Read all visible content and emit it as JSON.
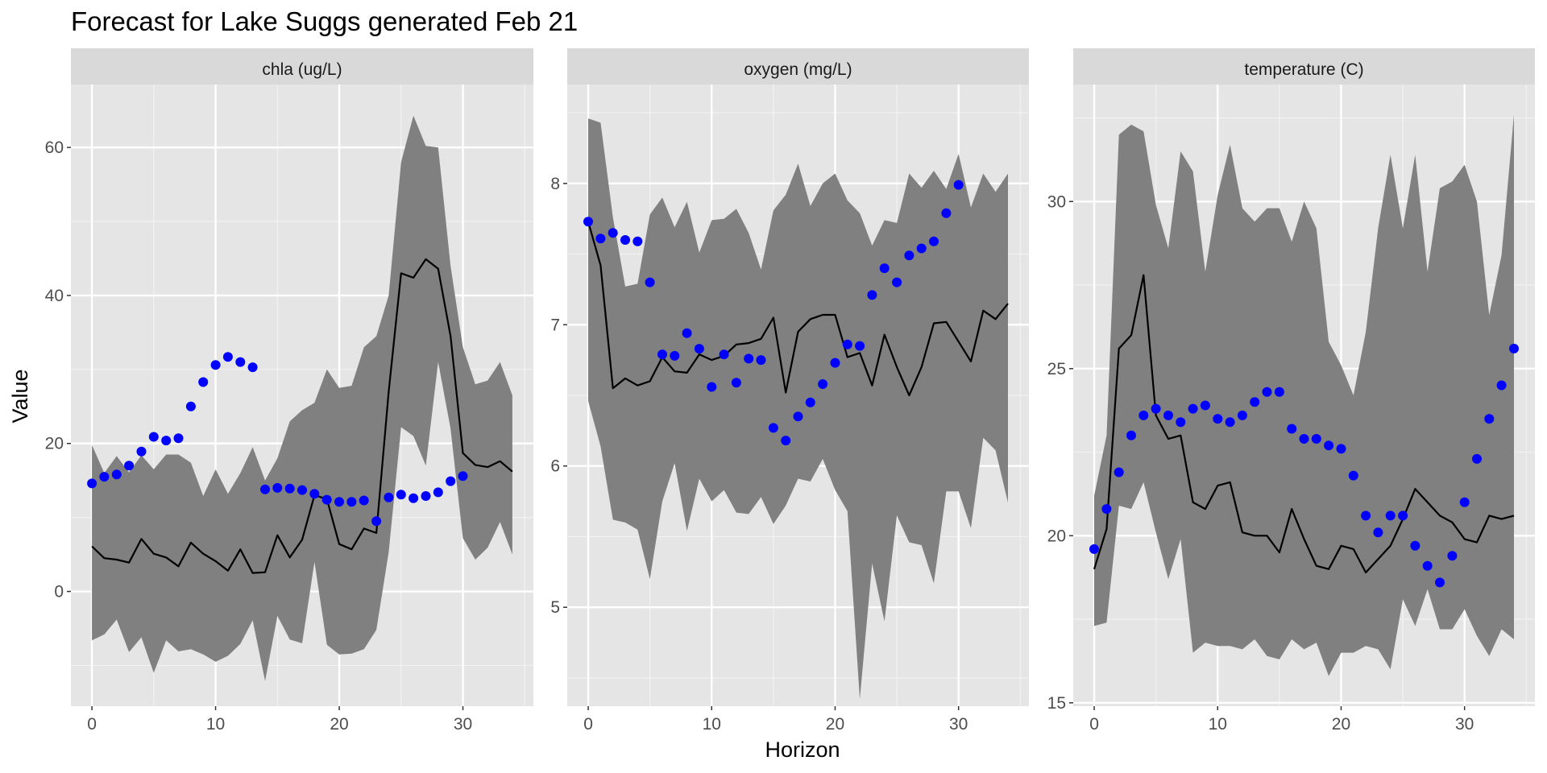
{
  "chart_data": {
    "type": "line",
    "title": "Forecast for Lake Suggs generated Feb 21",
    "xlabel": "Horizon",
    "ylabel": "Value",
    "colors": {
      "observed": "#0000ff",
      "mean": "#000000",
      "band": "#808080",
      "panel_bg": "#e5e5e5",
      "strip_bg": "#d9d9d9"
    },
    "grid": true,
    "facets": [
      {
        "label": "chla (ug/L)",
        "xlim": [
          -1.7,
          35.7
        ],
        "ylim": [
          -15.5,
          68.5
        ],
        "xticks": [
          0,
          10,
          20,
          30
        ],
        "yticks": [
          0,
          20,
          40,
          60
        ],
        "x": [
          0,
          1,
          2,
          3,
          4,
          5,
          6,
          7,
          8,
          9,
          10,
          11,
          12,
          13,
          14,
          15,
          16,
          17,
          18,
          19,
          20,
          21,
          22,
          23,
          24,
          25,
          26,
          27,
          28,
          29,
          30,
          31,
          32,
          33,
          34
        ],
        "mean": [
          6.1,
          4.5,
          4.3,
          3.9,
          7.1,
          5.1,
          4.6,
          3.4,
          6.6,
          5.1,
          4.1,
          2.8,
          5.7,
          2.5,
          2.6,
          7.6,
          4.6,
          7.0,
          13.0,
          12.5,
          6.4,
          5.7,
          8.5,
          7.9,
          27.0,
          43.0,
          42.4,
          44.9,
          43.6,
          34.5,
          18.7,
          17.1,
          16.8,
          17.6,
          16.2
        ],
        "upper": [
          19.8,
          16.0,
          18.3,
          16.1,
          18.4,
          16.5,
          18.5,
          18.5,
          17.4,
          12.9,
          16.5,
          13.2,
          16.0,
          19.5,
          15.0,
          18.0,
          23.0,
          24.5,
          25.5,
          30.0,
          27.5,
          27.8,
          33.0,
          34.5,
          40.0,
          58.0,
          64.3,
          60.2,
          60.0,
          44.0,
          33.0,
          28.0,
          28.5,
          31.0,
          26.5
        ],
        "lower": [
          -6.6,
          -5.8,
          -3.8,
          -8.2,
          -6.2,
          -11.0,
          -6.6,
          -8.1,
          -7.8,
          -8.5,
          -9.5,
          -8.7,
          -7.1,
          -3.9,
          -12.1,
          -3.3,
          -6.5,
          -7.0,
          4.0,
          -7.2,
          -8.5,
          -8.4,
          -7.8,
          -5.2,
          5.3,
          22.2,
          21.0,
          17.0,
          31.0,
          22.0,
          7.2,
          4.3,
          5.9,
          9.4,
          5.0
        ],
        "observed_x": [
          0,
          1,
          2,
          3,
          4,
          5,
          6,
          7,
          8,
          9,
          10,
          11,
          12,
          13,
          14,
          15,
          16,
          17,
          18,
          19,
          20,
          21,
          22,
          23,
          24,
          25,
          26,
          27,
          28,
          29,
          30
        ],
        "observed": [
          14.6,
          15.5,
          15.8,
          17.0,
          18.9,
          20.9,
          20.4,
          20.7,
          25.0,
          28.3,
          30.6,
          31.7,
          31.0,
          30.3,
          13.8,
          14.0,
          13.9,
          13.7,
          13.2,
          12.4,
          12.1,
          12.1,
          12.3,
          9.5,
          12.7,
          13.1,
          12.6,
          12.9,
          13.4,
          14.9,
          15.6
        ]
      },
      {
        "label": "oxygen (mg/L)",
        "xlim": [
          -1.7,
          35.7
        ],
        "ylim": [
          4.3,
          8.7
        ],
        "xticks": [
          0,
          10,
          20,
          30
        ],
        "yticks": [
          5,
          6,
          7,
          8
        ],
        "x": [
          0,
          1,
          2,
          3,
          4,
          5,
          6,
          7,
          8,
          9,
          10,
          11,
          12,
          13,
          14,
          15,
          16,
          17,
          18,
          19,
          20,
          21,
          22,
          23,
          24,
          25,
          26,
          27,
          28,
          29,
          30,
          31,
          32,
          33,
          34
        ],
        "mean": [
          7.73,
          7.42,
          6.55,
          6.62,
          6.57,
          6.6,
          6.77,
          6.67,
          6.66,
          6.79,
          6.75,
          6.78,
          6.86,
          6.87,
          6.9,
          7.05,
          6.52,
          6.95,
          7.04,
          7.07,
          7.07,
          6.77,
          6.8,
          6.57,
          6.93,
          6.7,
          6.5,
          6.7,
          7.01,
          7.02,
          6.88,
          6.74,
          7.1,
          7.04,
          7.15
        ],
        "upper": [
          8.46,
          8.43,
          7.76,
          7.27,
          7.29,
          7.78,
          7.9,
          7.69,
          7.87,
          7.51,
          7.74,
          7.75,
          7.82,
          7.65,
          7.39,
          7.81,
          7.92,
          8.14,
          7.84,
          8.0,
          8.07,
          7.88,
          7.79,
          7.56,
          7.74,
          7.72,
          8.07,
          7.97,
          8.09,
          7.96,
          8.21,
          7.83,
          8.07,
          7.94,
          8.07
        ],
        "lower": [
          6.46,
          6.14,
          5.62,
          5.6,
          5.55,
          5.2,
          5.75,
          6.02,
          5.54,
          5.91,
          5.75,
          5.83,
          5.67,
          5.66,
          5.78,
          5.59,
          5.72,
          5.91,
          5.89,
          6.05,
          5.83,
          5.68,
          4.35,
          5.31,
          4.9,
          5.65,
          5.46,
          5.44,
          5.17,
          5.82,
          5.82,
          5.56,
          6.2,
          6.11,
          5.74
        ],
        "observed_x": [
          0,
          1,
          2,
          3,
          4,
          5,
          6,
          7,
          8,
          9,
          10,
          11,
          12,
          13,
          14,
          15,
          16,
          17,
          18,
          19,
          20,
          21,
          22,
          23,
          24,
          25,
          26,
          27,
          28,
          29,
          30
        ],
        "observed": [
          7.73,
          7.61,
          7.65,
          7.6,
          7.59,
          7.3,
          6.79,
          6.78,
          6.94,
          6.83,
          6.56,
          6.79,
          6.59,
          6.76,
          6.75,
          6.27,
          6.18,
          6.35,
          6.45,
          6.58,
          6.73,
          6.86,
          6.85,
          7.21,
          7.4,
          7.3,
          7.49,
          7.54,
          7.59,
          7.79,
          7.99
        ]
      },
      {
        "label": "temperature (C)",
        "xlim": [
          -1.7,
          35.7
        ],
        "ylim": [
          14.9,
          33.5
        ],
        "xticks": [
          0,
          10,
          20,
          30
        ],
        "yticks": [
          15,
          20,
          25,
          30
        ],
        "x": [
          0,
          1,
          2,
          3,
          4,
          5,
          6,
          7,
          8,
          9,
          10,
          11,
          12,
          13,
          14,
          15,
          16,
          17,
          18,
          19,
          20,
          21,
          22,
          23,
          24,
          25,
          26,
          27,
          28,
          29,
          30,
          31,
          32,
          33,
          34
        ],
        "mean": [
          19.0,
          20.2,
          25.6,
          26.0,
          27.8,
          23.6,
          22.9,
          23.0,
          21.0,
          20.8,
          21.5,
          21.6,
          20.1,
          20.0,
          20.0,
          19.5,
          20.8,
          19.9,
          19.1,
          19.0,
          19.7,
          19.6,
          18.9,
          19.3,
          19.7,
          20.5,
          21.4,
          21.0,
          20.6,
          20.4,
          19.9,
          19.8,
          20.6,
          20.5,
          20.6
        ],
        "upper": [
          21.2,
          23.0,
          32.0,
          32.3,
          32.1,
          29.9,
          28.6,
          31.5,
          30.9,
          27.9,
          30.2,
          31.7,
          29.8,
          29.4,
          29.8,
          29.8,
          28.8,
          30.0,
          29.2,
          25.8,
          25.1,
          24.2,
          26.1,
          29.2,
          31.4,
          29.2,
          31.4,
          27.9,
          30.4,
          30.6,
          31.1,
          30.0,
          26.6,
          28.4,
          32.6
        ],
        "lower": [
          17.3,
          17.4,
          20.9,
          20.8,
          21.6,
          20.1,
          18.7,
          19.9,
          16.5,
          16.8,
          16.7,
          16.7,
          16.6,
          16.9,
          16.4,
          16.3,
          16.9,
          16.6,
          16.8,
          15.8,
          16.5,
          16.5,
          16.7,
          16.6,
          16.0,
          18.1,
          17.3,
          18.4,
          17.2,
          17.2,
          17.8,
          17.0,
          16.4,
          17.2,
          16.9
        ],
        "observed_x": [
          0,
          1,
          2,
          3,
          4,
          5,
          6,
          7,
          8,
          9,
          10,
          11,
          12,
          13,
          14,
          15,
          16,
          17,
          18,
          19,
          20,
          21,
          22,
          23,
          24,
          25,
          26,
          27,
          28,
          29,
          30,
          31,
          32,
          33,
          34
        ],
        "observed": [
          19.6,
          20.8,
          21.9,
          23.0,
          23.6,
          23.8,
          23.6,
          23.4,
          23.8,
          23.9,
          23.5,
          23.4,
          23.6,
          24.0,
          24.3,
          24.3,
          23.2,
          22.9,
          22.9,
          22.7,
          22.6,
          21.8,
          20.6,
          20.1,
          20.6,
          20.6,
          19.7,
          19.1,
          18.6,
          19.4,
          21.0,
          22.3,
          23.5,
          24.5,
          25.6
        ]
      }
    ]
  }
}
